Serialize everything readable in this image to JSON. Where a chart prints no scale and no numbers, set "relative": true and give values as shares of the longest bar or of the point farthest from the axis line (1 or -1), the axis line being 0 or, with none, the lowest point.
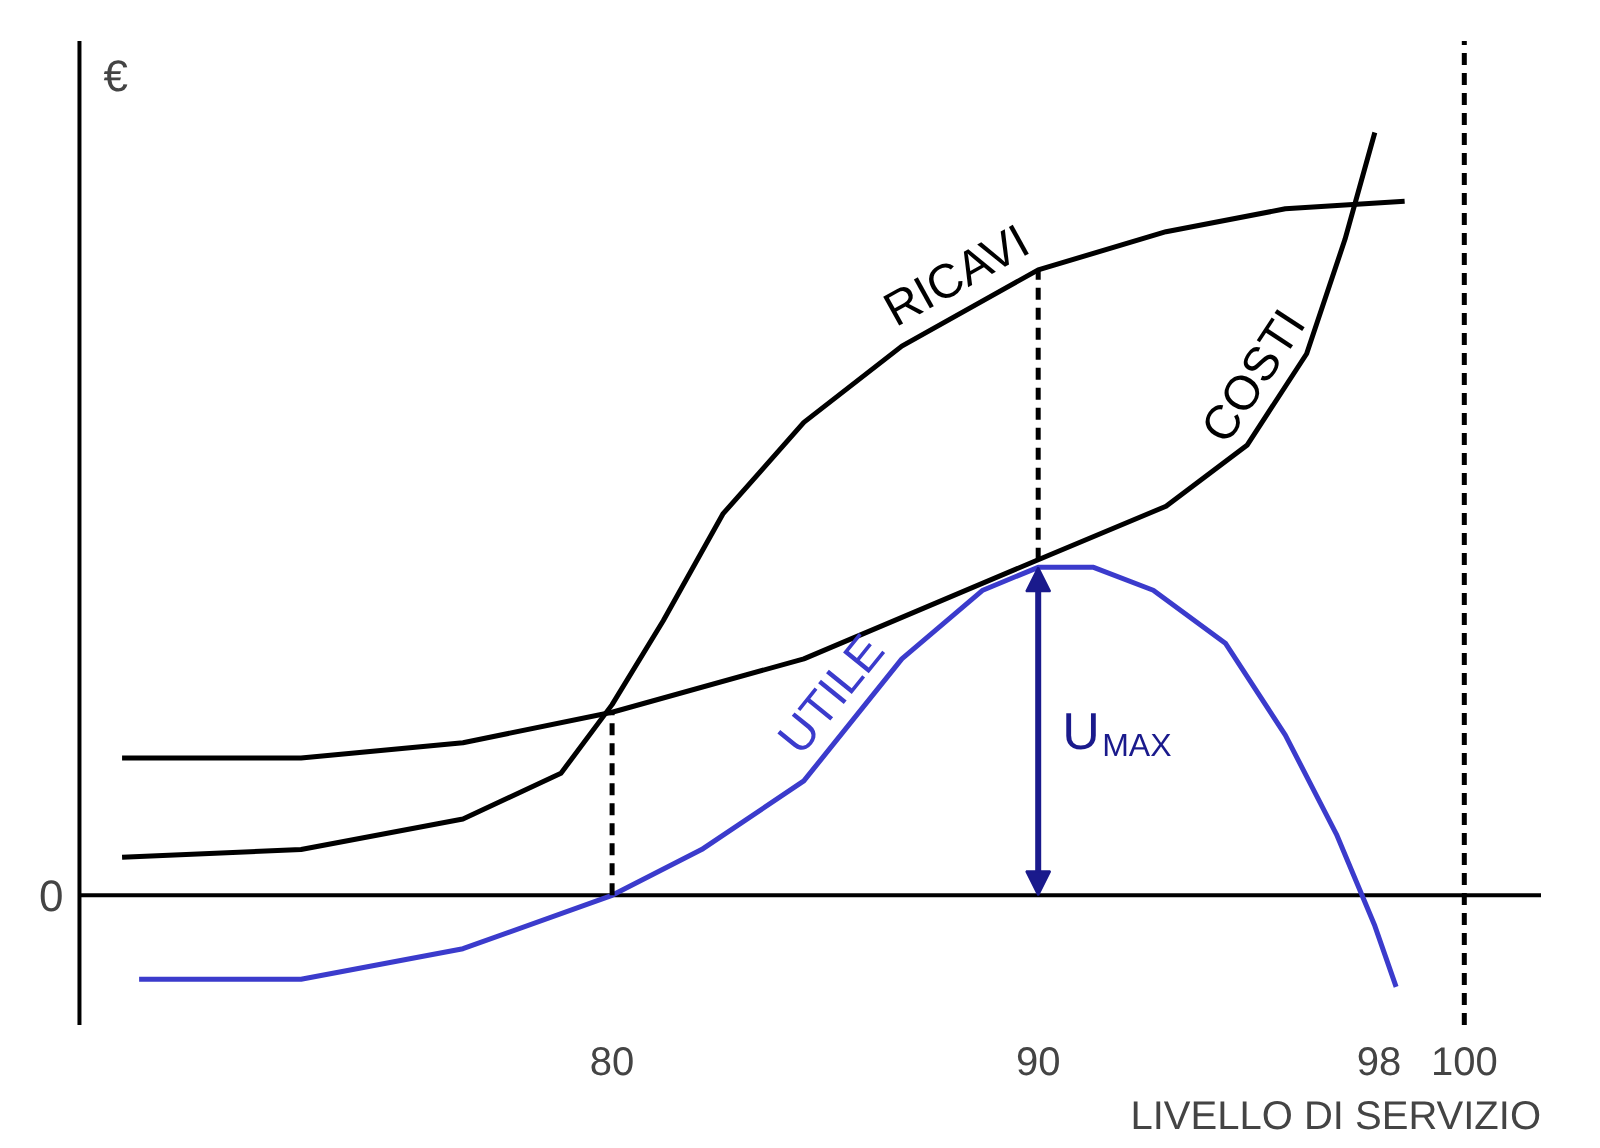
{
  "chart_data": {
    "type": "line",
    "relative": true,
    "ylabel": "€",
    "xlabel": "LIVELLO DI SERVIZIO",
    "xlim": [
      67.5,
      101.8
    ],
    "xticks": [
      80,
      90,
      98,
      100
    ],
    "grid": false,
    "legend": false,
    "marker": "none",
    "series": [
      {
        "name": "RICAVI",
        "color": "#000000",
        "x": [
          68.5,
          72.7,
          76.5,
          78.8,
          80,
          81.2,
          82.6,
          84.5,
          86.8,
          90,
          93,
          95.8,
          98.6
        ],
        "values": [
          0.05,
          0.06,
          0.1,
          0.16,
          0.25,
          0.36,
          0.5,
          0.62,
          0.72,
          0.82,
          0.87,
          0.9,
          0.91
        ]
      },
      {
        "name": "COSTI",
        "color": "#000000",
        "x": [
          68.5,
          72.7,
          76.5,
          80,
          84.5,
          90,
          93,
          94.9,
          96.3,
          97.2,
          97.9
        ],
        "values": [
          0.18,
          0.18,
          0.2,
          0.24,
          0.31,
          0.44,
          0.51,
          0.59,
          0.71,
          0.86,
          1.0
        ]
      },
      {
        "name": "UTILE",
        "color": "#3b3bcc",
        "x": [
          68.9,
          72.7,
          76.5,
          80,
          82.1,
          84.5,
          86.8,
          88.7,
          90,
          91.3,
          92.7,
          94.4,
          95.8,
          97,
          97.9,
          98.4
        ],
        "values": [
          -0.11,
          -0.11,
          -0.07,
          0.0,
          0.06,
          0.15,
          0.31,
          0.4,
          0.43,
          0.43,
          0.4,
          0.33,
          0.21,
          0.08,
          -0.04,
          -0.12
        ]
      },
      {
        "color": "#000000",
        "line_style": "dashed",
        "x": [
          80,
          80
        ],
        "values": [
          0.0,
          0.24
        ]
      },
      {
        "color": "#000000",
        "line_style": "dashed",
        "x": [
          90,
          90
        ],
        "values": [
          0.44,
          0.82
        ]
      }
    ],
    "ref_lines": [
      {
        "axis": "x",
        "value": 100,
        "line_style": "dashed",
        "color": "#000000"
      }
    ],
    "annotations": [
      "0",
      {
        "text": "U$_{MAX}$",
        "x": 90,
        "y": 0.43
      }
    ]
  }
}
